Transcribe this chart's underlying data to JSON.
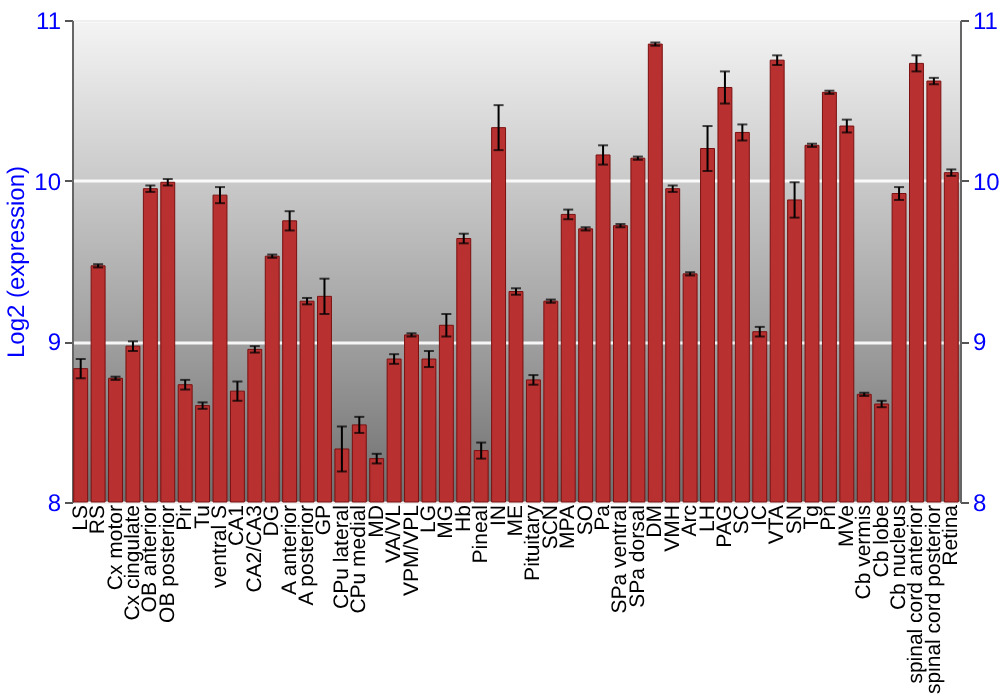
{
  "chart_data": {
    "type": "bar",
    "ylabel": "Log2 (expression)",
    "categories": [
      "LS",
      "RS",
      "Cx motor",
      "Cx cingulate",
      "OB anterior",
      "OB posterior",
      "Pir",
      "Tu",
      "ventral S",
      "CA1",
      "CA2/CA3",
      "DG",
      "A anterior",
      "A posterior",
      "GP",
      "CPu lateral",
      "CPu medial",
      "MD",
      "VA/VL",
      "VPM/VPL",
      "LG",
      "MG",
      "Hb",
      "Pineal",
      "IN",
      "ME",
      "Pituitary",
      "SCN",
      "MPA",
      "SO",
      "Pa",
      "SPa ventral",
      "SPa dorsal",
      "DM",
      "VMH",
      "Arc",
      "LH",
      "PAG",
      "SC",
      "IC",
      "VTA",
      "SN",
      "Tg",
      "Pn",
      "MVe",
      "Cb vermis",
      "Cb lobe",
      "Cb nucleus",
      "spinal cord anterior",
      "spinal cord posterior",
      "Retina"
    ],
    "values": [
      8.83,
      9.47,
      8.77,
      8.97,
      9.95,
      9.99,
      8.73,
      8.6,
      9.91,
      8.69,
      8.95,
      9.53,
      9.75,
      9.25,
      9.28,
      8.33,
      8.48,
      8.27,
      8.89,
      9.04,
      8.89,
      9.1,
      9.64,
      8.32,
      10.33,
      9.31,
      8.76,
      9.25,
      9.79,
      9.7,
      10.16,
      9.72,
      10.14,
      10.85,
      9.95,
      9.42,
      10.2,
      10.58,
      10.3,
      9.06,
      10.75,
      9.88,
      10.22,
      10.55,
      10.34,
      8.67,
      8.61,
      9.92,
      10.73,
      10.62,
      10.05
    ],
    "errors": [
      0.06,
      0.01,
      0.01,
      0.03,
      0.02,
      0.02,
      0.03,
      0.02,
      0.05,
      0.06,
      0.02,
      0.01,
      0.06,
      0.02,
      0.11,
      0.14,
      0.05,
      0.03,
      0.03,
      0.01,
      0.05,
      0.07,
      0.03,
      0.05,
      0.14,
      0.02,
      0.03,
      0.01,
      0.03,
      0.01,
      0.06,
      0.01,
      0.01,
      0.01,
      0.02,
      0.01,
      0.14,
      0.1,
      0.05,
      0.03,
      0.03,
      0.11,
      0.01,
      0.01,
      0.04,
      0.01,
      0.02,
      0.04,
      0.05,
      0.02,
      0.02
    ],
    "color": "#b83030",
    "ylim": [
      8,
      11
    ],
    "yticks": [
      8,
      9,
      10,
      11
    ],
    "y2lim": [
      8,
      11
    ],
    "y2ticks": [
      8,
      9,
      10,
      11
    ],
    "grid": "y"
  }
}
